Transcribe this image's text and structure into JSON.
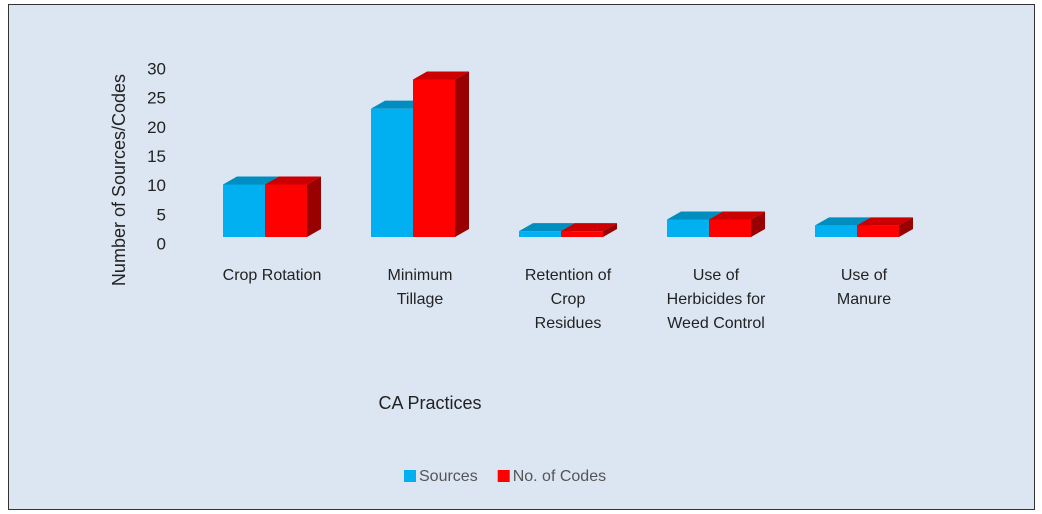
{
  "chart_data": {
    "type": "bar3d",
    "x_label": "CA Practices",
    "y_label": "Number of Sources/Codes",
    "categories": [
      "Crop Rotation",
      "Minimum Tillage",
      "Retention of Crop Residues",
      "Use of Herbicides for Weed Control",
      "Use of Manure"
    ],
    "series": [
      {
        "name": "Sources",
        "color": "#00b0f0",
        "values": [
          9,
          22,
          1,
          3,
          2
        ]
      },
      {
        "name": "No. of Codes",
        "color": "#ff0000",
        "values": [
          9,
          27,
          1,
          3,
          2
        ]
      }
    ],
    "ylim": [
      0,
      30
    ],
    "yticks": [
      0,
      5,
      10,
      15,
      20,
      25,
      30
    ],
    "legend": "bottom"
  }
}
